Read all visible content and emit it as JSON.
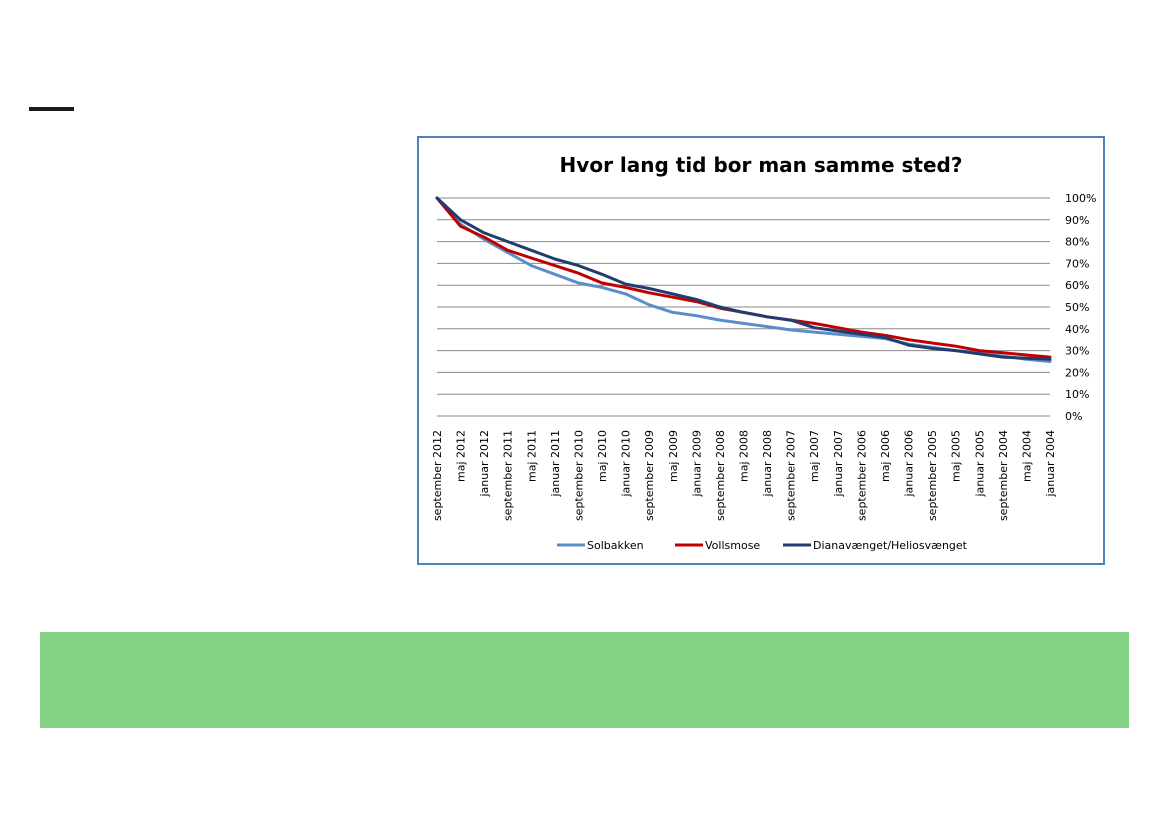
{
  "chart_data": {
    "type": "line",
    "title": "Hvor lang tid bor man samme sted?",
    "xlabel": "",
    "ylabel": "",
    "ylim": [
      0,
      100
    ],
    "y_ticks": [
      "0%",
      "10%",
      "20%",
      "30%",
      "40%",
      "50%",
      "60%",
      "70%",
      "80%",
      "90%",
      "100%"
    ],
    "y_axis_side": "right",
    "grid": true,
    "legend_position": "bottom",
    "categories": [
      "september 2012",
      "maj 2012",
      "januar 2012",
      "september 2011",
      "maj 2011",
      "januar 2011",
      "september 2010",
      "maj 2010",
      "januar 2010",
      "september 2009",
      "maj 2009",
      "januar 2009",
      "september 2008",
      "maj 2008",
      "januar 2008",
      "september 2007",
      "maj 2007",
      "januar 2007",
      "september 2006",
      "maj 2006",
      "januar 2006",
      "september 2005",
      "maj 2005",
      "januar 2005",
      "september 2004",
      "maj 2004",
      "januar 2004"
    ],
    "series": [
      {
        "name": "Solbakken",
        "color": "#5b8ec8",
        "values": [
          100,
          88,
          81,
          75,
          69,
          65,
          61,
          59,
          56,
          51,
          47.5,
          46,
          44,
          42.5,
          41,
          39.5,
          38.5,
          37.5,
          36.5,
          35.5,
          33,
          31.5,
          30,
          29,
          27.5,
          26,
          25
        ]
      },
      {
        "name": "Vollsmose",
        "color": "#c00000",
        "values": [
          100,
          87,
          82,
          76,
          72.5,
          69,
          65.5,
          61,
          59,
          56.5,
          54.5,
          52.5,
          49.5,
          47.5,
          45.5,
          44,
          42.5,
          40.5,
          38.5,
          37,
          35,
          33.5,
          32,
          30,
          29,
          28,
          27
        ]
      },
      {
        "name": "Dianavænget/Heliosvænget",
        "color": "#1f3d6e",
        "values": [
          100,
          90,
          84,
          80,
          76,
          72,
          69,
          65,
          60.5,
          58.5,
          56,
          53.5,
          50,
          47.5,
          45.5,
          44,
          40.5,
          39,
          37.5,
          36,
          32.5,
          31,
          30,
          28.5,
          27,
          26.5,
          26
        ]
      }
    ]
  }
}
